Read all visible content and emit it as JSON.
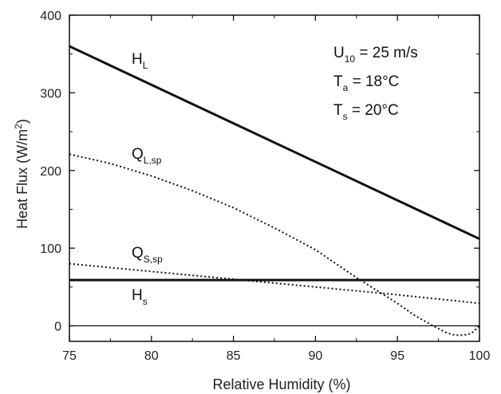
{
  "chart_data": {
    "type": "line",
    "xlabel": "Relative Humidity (%)",
    "ylabel_main": "Heat Flux (W/m",
    "ylabel_sup": "2",
    "ylabel_close": ")",
    "xlim": [
      75,
      100
    ],
    "ylim": [
      -20,
      400
    ],
    "xticks": [
      75,
      80,
      85,
      90,
      95,
      100
    ],
    "yticks": [
      0,
      100,
      200,
      300,
      400
    ],
    "grid": false,
    "annotation": {
      "line1": {
        "main": "U",
        "sub": "10",
        "rest": " = 25 m/s"
      },
      "line2": {
        "main": "T",
        "sub": "a",
        "rest": " = 18°C"
      },
      "line3": {
        "main": "T",
        "sub": "s",
        "rest": " = 20°C"
      }
    },
    "series": [
      {
        "name": "H_L",
        "label_main": "H",
        "label_sub": "L",
        "style": "solid",
        "width": 3,
        "x": [
          75,
          100
        ],
        "y": [
          360,
          112
        ]
      },
      {
        "name": "Q_L,sp",
        "label_main": "Q",
        "label_sub": "L,sp",
        "style": "dotted",
        "width": 2,
        "x": [
          75,
          77.5,
          80,
          82.5,
          85,
          87.5,
          90,
          92.5,
          95,
          96,
          97,
          98,
          98.5,
          99,
          99.5,
          100
        ],
        "y": [
          221,
          209,
          193,
          174,
          152,
          126,
          98,
          62,
          29,
          14,
          2,
          -9,
          -12,
          -12,
          -10,
          0
        ]
      },
      {
        "name": "Q_S,sp",
        "label_main": "Q",
        "label_sub": "S,sp",
        "style": "dotted",
        "width": 2,
        "x": [
          75,
          80,
          85,
          90,
          95,
          100
        ],
        "y": [
          80,
          70,
          60,
          50,
          40,
          29
        ]
      },
      {
        "name": "H_s",
        "label_main": "H",
        "label_sub": "s",
        "style": "solid",
        "width": 3,
        "x": [
          75,
          100
        ],
        "y": [
          59,
          59
        ]
      },
      {
        "name": "zero",
        "style": "solid",
        "width": 1.3,
        "x": [
          75,
          100
        ],
        "y": [
          0,
          0
        ]
      }
    ]
  },
  "colors": {
    "line": "#111111",
    "axis": "#111111",
    "background": "#ffffff"
  }
}
